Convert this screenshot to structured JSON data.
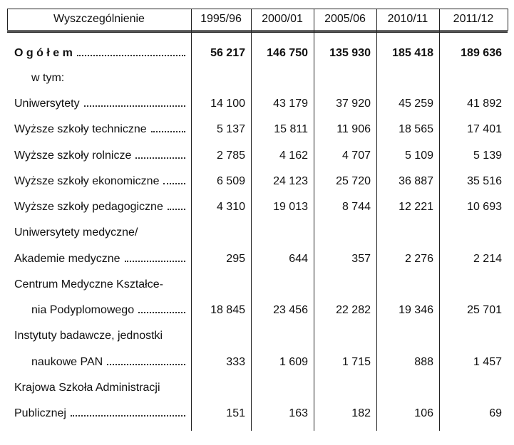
{
  "header": {
    "label": "Wyszczególnienie",
    "years": [
      "1995/96",
      "2000/01",
      "2005/06",
      "2010/11",
      "2011/12"
    ]
  },
  "rows": [
    {
      "lines": [
        {
          "text": "O g ó ł e m"
        }
      ],
      "values": [
        "56 217",
        "146 750",
        "135 930",
        "185 418",
        "189 636"
      ],
      "bold": true
    },
    {
      "lines": [
        {
          "text": "w tym:",
          "indent": true
        }
      ]
    },
    {
      "lines": [
        {
          "text": "Uniwersytety"
        }
      ],
      "values": [
        "14 100",
        "43 179",
        "37 920",
        "45 259",
        "41 892"
      ]
    },
    {
      "lines": [
        {
          "text": "Wyższe szkoły techniczne"
        }
      ],
      "values": [
        "5 137",
        "15 811",
        "11 906",
        "18 565",
        "17 401"
      ]
    },
    {
      "lines": [
        {
          "text": "Wyższe szkoły rolnicze"
        }
      ],
      "values": [
        "2 785",
        "4 162",
        "4 707",
        "5 109",
        "5 139"
      ]
    },
    {
      "lines": [
        {
          "text": "Wyższe szkoły ekonomiczne"
        }
      ],
      "values": [
        "6 509",
        "24 123",
        "25 720",
        "36 887",
        "35 516"
      ]
    },
    {
      "lines": [
        {
          "text": "Wyższe szkoły pedagogiczne"
        }
      ],
      "values": [
        "4 310",
        "19 013",
        "8 744",
        "12 221",
        "10 693"
      ]
    },
    {
      "lines": [
        {
          "text": "Uniwersytety medyczne/"
        },
        {
          "text": "Akademie medyczne"
        }
      ],
      "values": [
        "295",
        "644",
        "357",
        "2 276",
        "2 214"
      ]
    },
    {
      "lines": [
        {
          "text": "Centrum Medyczne Kształce-"
        },
        {
          "text": "nia Podyplomowego",
          "indent": true
        }
      ],
      "values": [
        "18 845",
        "23 456",
        "22 282",
        "19 346",
        "25 701"
      ]
    },
    {
      "lines": [
        {
          "text": "Instytuty badawcze, jednostki"
        },
        {
          "text": "naukowe PAN",
          "indent": true
        }
      ],
      "values": [
        "333",
        "1 609",
        "1 715",
        "888",
        "1 457"
      ]
    },
    {
      "lines": [
        {
          "text": "Krajowa Szkoła Administracji"
        },
        {
          "text": "Publicznej"
        }
      ],
      "values": [
        "151",
        "163",
        "182",
        "106",
        "69"
      ]
    }
  ]
}
